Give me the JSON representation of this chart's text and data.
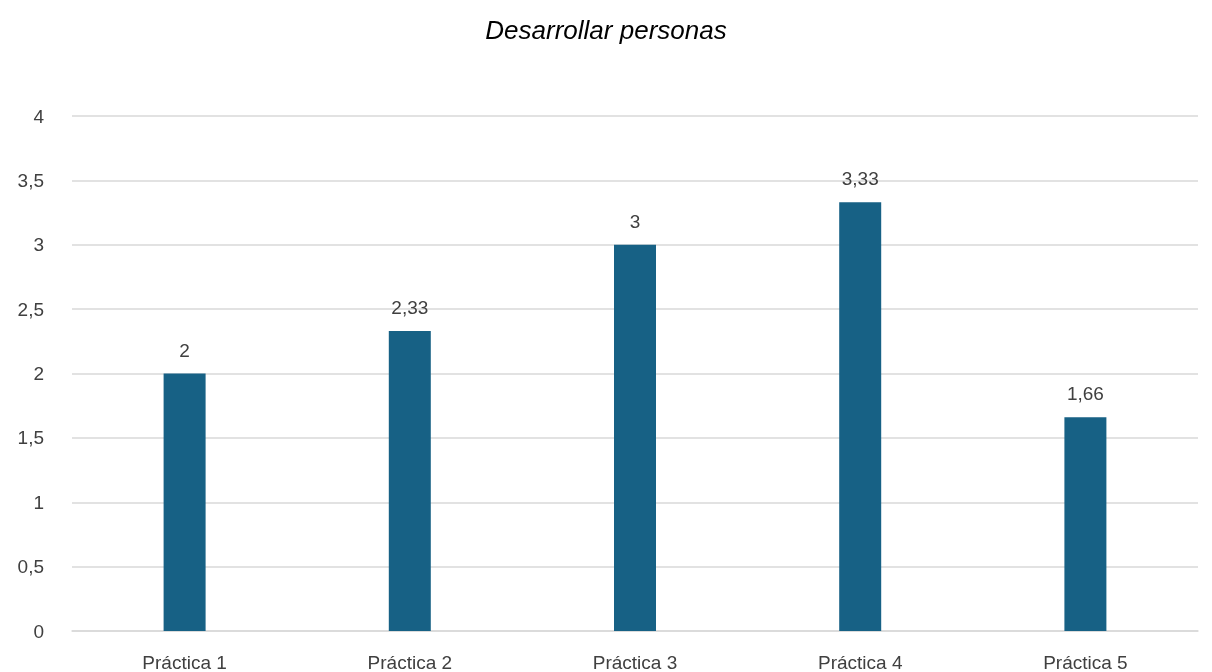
{
  "chart_data": {
    "type": "bar",
    "title": "Desarrollar personas",
    "categories": [
      "Práctica 1",
      "Práctica 2",
      "Práctica 3",
      "Práctica 4",
      "Práctica 5"
    ],
    "values": [
      2,
      2.33,
      3,
      3.33,
      1.66
    ],
    "value_labels": [
      "2",
      "2,33",
      "3",
      "3,33",
      "1,66"
    ],
    "color": "#176185",
    "ylim": [
      0,
      4
    ],
    "yticks": [
      0,
      {
        "value": 0.5,
        "label": "0,5"
      },
      1,
      {
        "value": 1.5,
        "label": "1,5"
      },
      2,
      {
        "value": 2.5,
        "label": "2,5"
      },
      3,
      {
        "value": 3.5,
        "label": "3,5"
      },
      4
    ],
    "grid": "y"
  }
}
